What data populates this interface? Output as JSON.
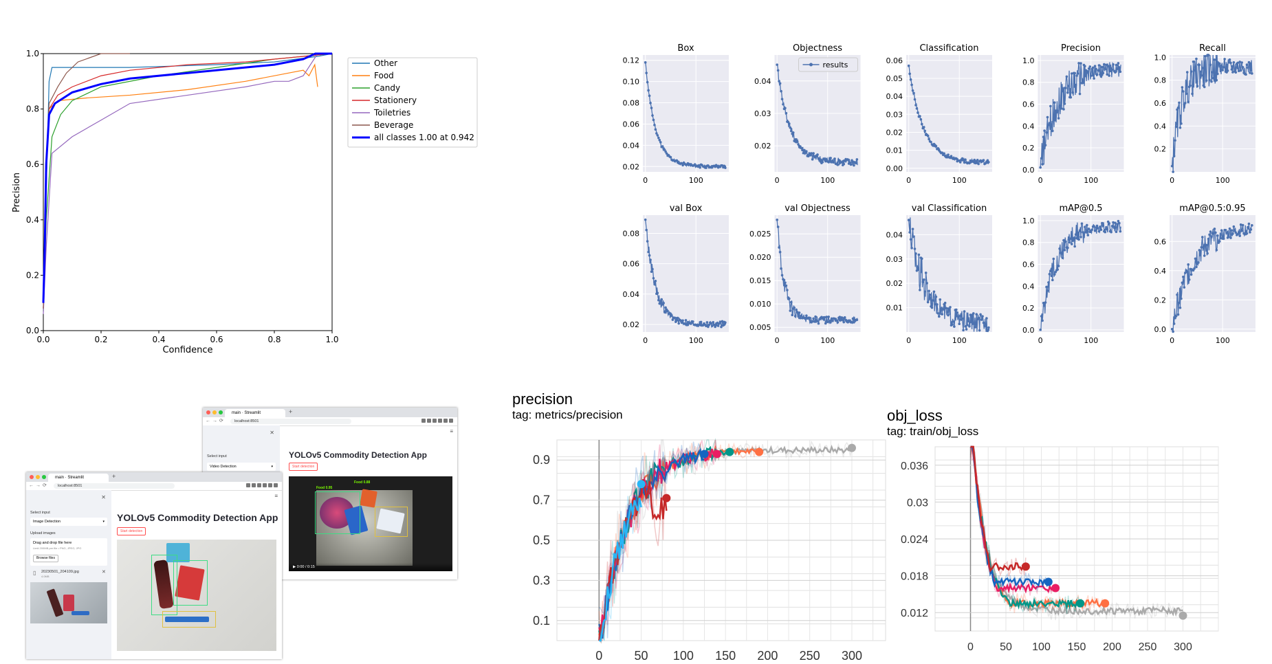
{
  "chart_data": [
    {
      "type": "line",
      "xlabel": "Confidence",
      "ylabel": "Precision",
      "xlim": [
        0,
        1
      ],
      "ylim": [
        0,
        1
      ],
      "x_ticks": [
        "0.0",
        "0.2",
        "0.4",
        "0.6",
        "0.8",
        "1.0"
      ],
      "y_ticks": [
        "0.0",
        "0.2",
        "0.4",
        "0.6",
        "0.8",
        "1.0"
      ],
      "legend_placement": "outside-right",
      "series": [
        {
          "name": "Other",
          "color": "#1f77b4",
          "x": [
            0,
            0.01,
            0.02,
            0.03,
            0.1,
            0.3,
            0.6,
            0.8,
            0.95,
            1.0
          ],
          "y": [
            0.08,
            0.5,
            0.9,
            0.95,
            0.95,
            0.95,
            0.96,
            0.97,
            0.99,
            1.0
          ]
        },
        {
          "name": "Food",
          "color": "#ff7f0e",
          "x": [
            0,
            0.01,
            0.02,
            0.05,
            0.15,
            0.3,
            0.5,
            0.7,
            0.85,
            0.9,
            0.92,
            0.94,
            0.95
          ],
          "y": [
            0.08,
            0.6,
            0.8,
            0.83,
            0.84,
            0.85,
            0.87,
            0.9,
            0.93,
            0.94,
            0.92,
            0.96,
            0.88
          ]
        },
        {
          "name": "Candy",
          "color": "#2ca02c",
          "x": [
            0,
            0.01,
            0.03,
            0.06,
            0.1,
            0.2,
            0.4,
            0.6,
            0.8,
            1.0
          ],
          "y": [
            0.07,
            0.4,
            0.7,
            0.78,
            0.83,
            0.88,
            0.92,
            0.95,
            0.98,
            1.0
          ]
        },
        {
          "name": "Stationery",
          "color": "#d62728",
          "x": [
            0,
            0.01,
            0.02,
            0.05,
            0.1,
            0.2,
            0.3,
            0.5,
            0.7,
            0.9,
            1.0
          ],
          "y": [
            0.08,
            0.6,
            0.8,
            0.85,
            0.88,
            0.92,
            0.94,
            0.96,
            0.97,
            0.99,
            1.0
          ]
        },
        {
          "name": "Toiletries",
          "color": "#9467bd",
          "x": [
            0,
            0.01,
            0.03,
            0.1,
            0.2,
            0.3,
            0.5,
            0.7,
            0.8,
            0.85,
            0.9,
            0.95
          ],
          "y": [
            0.06,
            0.3,
            0.64,
            0.7,
            0.76,
            0.82,
            0.85,
            0.88,
            0.9,
            0.9,
            0.92,
            1.0
          ]
        },
        {
          "name": "Beverage",
          "color": "#8c564b",
          "x": [
            0,
            0.01,
            0.02,
            0.05,
            0.08,
            0.12,
            0.2,
            0.3
          ],
          "y": [
            0.08,
            0.6,
            0.82,
            0.88,
            0.93,
            0.97,
            1.0,
            1.0
          ]
        },
        {
          "name": "all classes 1.00 at 0.942",
          "color": "#0000ff",
          "x": [
            0,
            0.005,
            0.01,
            0.02,
            0.04,
            0.07,
            0.1,
            0.2,
            0.3,
            0.5,
            0.7,
            0.8,
            0.9,
            0.942,
            1.0
          ],
          "y": [
            0.1,
            0.3,
            0.6,
            0.78,
            0.82,
            0.84,
            0.86,
            0.89,
            0.91,
            0.93,
            0.95,
            0.96,
            0.98,
            1.0,
            1.0
          ]
        }
      ]
    },
    {
      "type": "line",
      "layout": "grid-2x5",
      "legend": "results",
      "legend_placement": "top-right of Objectness",
      "x_ticks": [
        "0",
        "100"
      ],
      "xlim": [
        -5,
        165
      ],
      "color": "#4c72b0",
      "panels": [
        {
          "title": "Box",
          "ylim": [
            0.015,
            0.125
          ],
          "y_ticks": [
            "0.02",
            "0.04",
            "0.06",
            "0.08",
            "0.10",
            "0.12"
          ],
          "start": 0.118,
          "end": 0.02,
          "k": 0.05,
          "noise": 0.0015
        },
        {
          "title": "Objectness",
          "ylim": [
            0.012,
            0.048
          ],
          "y_ticks": [
            "0.02",
            "0.03",
            "0.04"
          ],
          "start": 0.045,
          "end": 0.015,
          "k": 0.04,
          "noise": 0.0012,
          "has_legend": true
        },
        {
          "title": "Classification",
          "ylim": [
            -0.002,
            0.063
          ],
          "y_ticks": [
            "0.00",
            "0.01",
            "0.02",
            "0.03",
            "0.04",
            "0.05",
            "0.06"
          ],
          "start": 0.057,
          "end": 0.003,
          "k": 0.035,
          "noise": 0.0012
        },
        {
          "title": "Precision",
          "ylim": [
            -0.02,
            1.05
          ],
          "y_ticks": [
            "0.0",
            "0.2",
            "0.4",
            "0.6",
            "0.8",
            "1.0"
          ],
          "start": 0.02,
          "end": 0.93,
          "k": 0.03,
          "noise": 0.07,
          "rising": true
        },
        {
          "title": "Recall",
          "ylim": [
            0.0,
            1.02
          ],
          "y_ticks": [
            "0.2",
            "0.4",
            "0.6",
            "0.8",
            "1.0"
          ],
          "start": 0.05,
          "end": 0.92,
          "k": 0.05,
          "noise": 0.07,
          "rising": true
        },
        {
          "title": "val Box",
          "ylim": [
            0.015,
            0.092
          ],
          "y_ticks": [
            "0.02",
            "0.04",
            "0.06",
            "0.08"
          ],
          "start": 0.089,
          "end": 0.02,
          "k": 0.05,
          "noise": 0.002
        },
        {
          "title": "val Objectness",
          "ylim": [
            0.004,
            0.029
          ],
          "y_ticks": [
            "0.005",
            "0.010",
            "0.015",
            "0.020",
            "0.025"
          ],
          "start": 0.028,
          "end": 0.0065,
          "k": 0.07,
          "noise": 0.0008
        },
        {
          "title": "val Classification",
          "ylim": [
            0.0,
            0.048
          ],
          "y_ticks": [
            "0.01",
            "0.02",
            "0.03",
            "0.04"
          ],
          "start": 0.046,
          "end": 0.003,
          "k": 0.03,
          "noise": 0.004
        },
        {
          "title": "mAP@0.5",
          "ylim": [
            -0.02,
            1.05
          ],
          "y_ticks": [
            "0.0",
            "0.2",
            "0.4",
            "0.6",
            "0.8",
            "1.0"
          ],
          "start": 0.0,
          "end": 0.95,
          "k": 0.035,
          "noise": 0.05,
          "rising": true
        },
        {
          "title": "mAP@0.5:0.95",
          "ylim": [
            -0.02,
            0.78
          ],
          "y_ticks": [
            "0.0",
            "0.2",
            "0.4",
            "0.6"
          ],
          "start": 0.0,
          "end": 0.7,
          "k": 0.025,
          "noise": 0.04,
          "rising": true
        }
      ]
    },
    {
      "type": "line",
      "title": "precision",
      "subtitle": "tag: metrics/precision",
      "xlim": [
        -50,
        340
      ],
      "ylim": [
        0.0,
        1.0
      ],
      "x_ticks": [
        "0",
        "50",
        "100",
        "150",
        "200",
        "250",
        "300"
      ],
      "y_ticks": [
        "0.1",
        "0.3",
        "0.5",
        "0.7",
        "0.9"
      ],
      "series": [
        {
          "color": "#aaaaaa",
          "end": 300,
          "final": 0.96
        },
        {
          "color": "#ff7043",
          "end": 190,
          "final": 0.94
        },
        {
          "color": "#009688",
          "end": 155,
          "final": 0.94
        },
        {
          "color": "#e91e63",
          "end": 140,
          "final": 0.93
        },
        {
          "color": "#1565c0",
          "end": 125,
          "final": 0.93
        },
        {
          "color": "#c62828",
          "end": 80,
          "final": 0.71
        },
        {
          "color": "#29b6f6",
          "end": 50,
          "final": 0.78
        }
      ]
    },
    {
      "type": "line",
      "title": "obj_loss",
      "subtitle": "tag: train/obj_loss",
      "xlim": [
        -50,
        350
      ],
      "ylim": [
        0.009,
        0.039
      ],
      "x_ticks": [
        "0",
        "50",
        "100",
        "150",
        "200",
        "250",
        "300"
      ],
      "y_ticks": [
        "0.012",
        "0.018",
        "0.024",
        "0.03",
        "0.036"
      ],
      "series": [
        {
          "color": "#aaaaaa",
          "end": 300,
          "final": 0.0115
        },
        {
          "color": "#ff7043",
          "end": 190,
          "final": 0.0135
        },
        {
          "color": "#009688",
          "end": 155,
          "final": 0.0135
        },
        {
          "color": "#e91e63",
          "end": 120,
          "final": 0.016
        },
        {
          "color": "#1565c0",
          "end": 110,
          "final": 0.017
        },
        {
          "color": "#c62828",
          "end": 78,
          "final": 0.0195
        }
      ]
    }
  ],
  "apps": {
    "front": {
      "tab_title": "main · Streamlit",
      "url": "localhost:8501",
      "sidebar_label": "Select input",
      "select_value": "Image Detection",
      "upload_label": "Upload images",
      "drop_text": "Drag and drop file here",
      "limit_text": "Limit 200MB per file • PNG, JPEG, JPG",
      "browse": "Browse files",
      "file_name": "20230501_204109.jpg",
      "file_size": "4.0MB",
      "title": "YOLOv5 Commodity Detection App",
      "button": "Start detection"
    },
    "back": {
      "tab_title": "main · Streamlit",
      "url": "localhost:8501",
      "sidebar_label": "Select input",
      "select_value": "Video Detection",
      "title": "YOLOv5 Commodity Detection App",
      "button": "Start detection",
      "det_1": "Food 0.95",
      "det_2": "Food 0.88",
      "video_time": "0:00 / 0:15"
    }
  }
}
